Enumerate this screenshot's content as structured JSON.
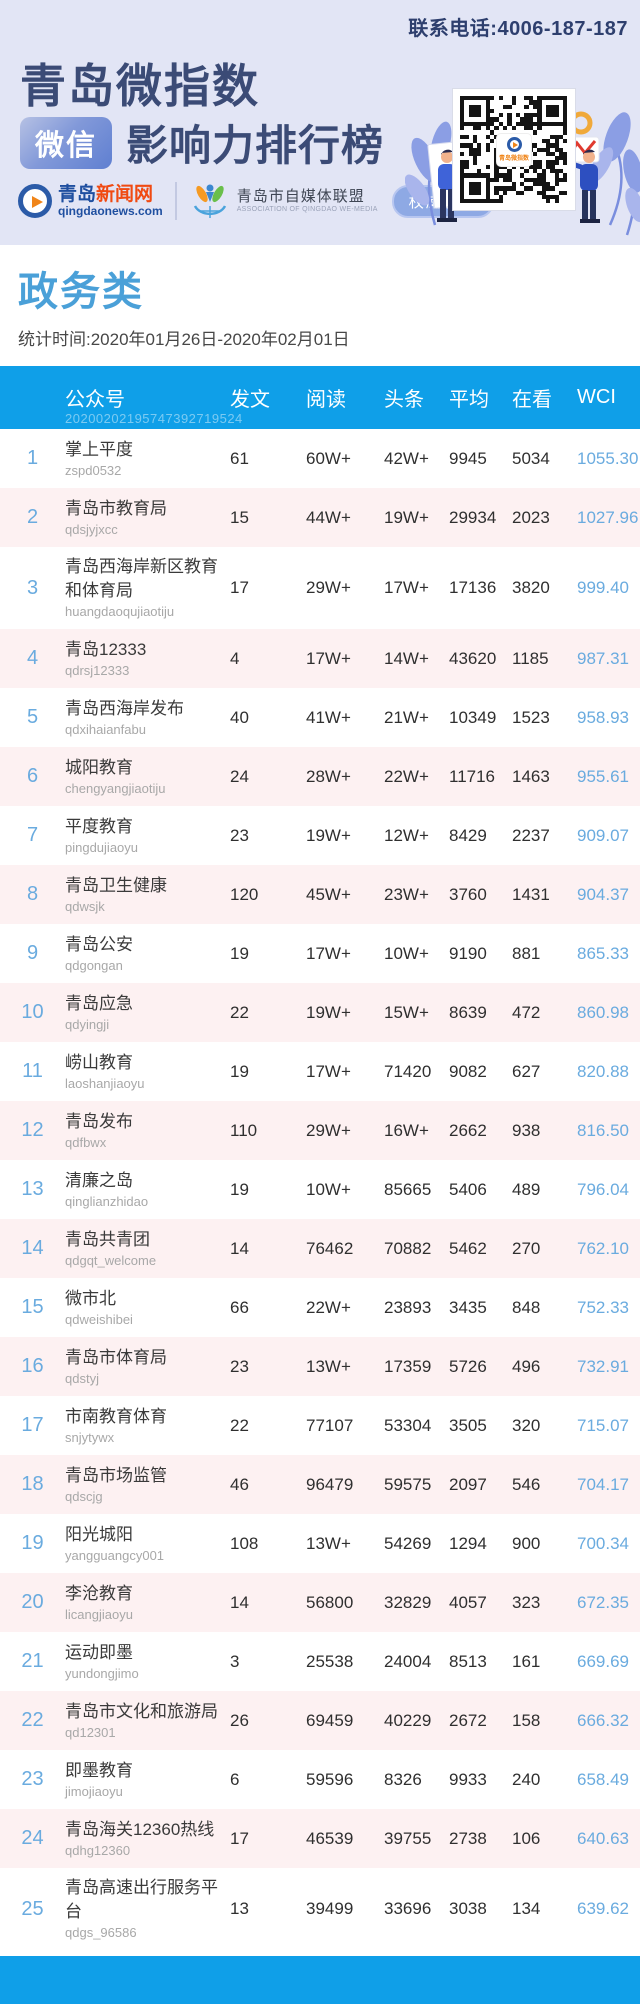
{
  "banner": {
    "phone": "联系电话:4006-187-187",
    "title_line1": "青岛微指数",
    "wechat_badge": "微信",
    "title_line2": "影响力排行榜",
    "news_logo": {
      "cn_blue": "青岛",
      "cn_orange": "新闻网",
      "domain": "qingdaonews.com"
    },
    "alliance_logo": {
      "name": "青岛市自媒体联盟",
      "sub": "ASSOCIATION OF QINGDAO WE-MEDIA"
    },
    "authority_badge": "权威发布",
    "qr_center_label": "青岛微指数"
  },
  "section": {
    "category": "政务类",
    "period": "统计时间:2020年01月26日-2020年02月01日"
  },
  "table": {
    "watermark": "20200202195747392719524",
    "columns": [
      "公众号",
      "发文",
      "阅读",
      "头条",
      "平均",
      "在看",
      "WCI"
    ],
    "rows": [
      {
        "rank": "1",
        "name": "掌上平度",
        "id": "zspd0532",
        "posts": "61",
        "reads": "60W+",
        "headline": "42W+",
        "average": "9945",
        "looking": "5034",
        "wci": "1055.30"
      },
      {
        "rank": "2",
        "name": "青岛市教育局",
        "id": "qdsjyjxcc",
        "posts": "15",
        "reads": "44W+",
        "headline": "19W+",
        "average": "29934",
        "looking": "2023",
        "wci": "1027.96"
      },
      {
        "rank": "3",
        "name": "青岛西海岸新区教育和体育局",
        "id": "huangdaoqujiaotiju",
        "posts": "17",
        "reads": "29W+",
        "headline": "17W+",
        "average": "17136",
        "looking": "3820",
        "wci": "999.40"
      },
      {
        "rank": "4",
        "name": "青岛12333",
        "id": "qdrsj12333",
        "posts": "4",
        "reads": "17W+",
        "headline": "14W+",
        "average": "43620",
        "looking": "1185",
        "wci": "987.31"
      },
      {
        "rank": "5",
        "name": "青岛西海岸发布",
        "id": "qdxihaianfabu",
        "posts": "40",
        "reads": "41W+",
        "headline": "21W+",
        "average": "10349",
        "looking": "1523",
        "wci": "958.93"
      },
      {
        "rank": "6",
        "name": "城阳教育",
        "id": "chengyangjiaotiju",
        "posts": "24",
        "reads": "28W+",
        "headline": "22W+",
        "average": "11716",
        "looking": "1463",
        "wci": "955.61"
      },
      {
        "rank": "7",
        "name": "平度教育",
        "id": "pingdujiaoyu",
        "posts": "23",
        "reads": "19W+",
        "headline": "12W+",
        "average": "8429",
        "looking": "2237",
        "wci": "909.07"
      },
      {
        "rank": "8",
        "name": "青岛卫生健康",
        "id": "qdwsjk",
        "posts": "120",
        "reads": "45W+",
        "headline": "23W+",
        "average": "3760",
        "looking": "1431",
        "wci": "904.37"
      },
      {
        "rank": "9",
        "name": "青岛公安",
        "id": "qdgongan",
        "posts": "19",
        "reads": "17W+",
        "headline": "10W+",
        "average": "9190",
        "looking": "881",
        "wci": "865.33"
      },
      {
        "rank": "10",
        "name": "青岛应急",
        "id": "qdyingji",
        "posts": "22",
        "reads": "19W+",
        "headline": "15W+",
        "average": "8639",
        "looking": "472",
        "wci": "860.98"
      },
      {
        "rank": "11",
        "name": "崂山教育",
        "id": "laoshanjiaoyu",
        "posts": "19",
        "reads": "17W+",
        "headline": "71420",
        "average": "9082",
        "looking": "627",
        "wci": "820.88"
      },
      {
        "rank": "12",
        "name": "青岛发布",
        "id": "qdfbwx",
        "posts": "110",
        "reads": "29W+",
        "headline": "16W+",
        "average": "2662",
        "looking": "938",
        "wci": "816.50"
      },
      {
        "rank": "13",
        "name": "清廉之岛",
        "id": "qinglianzhidao",
        "posts": "19",
        "reads": "10W+",
        "headline": "85665",
        "average": "5406",
        "looking": "489",
        "wci": "796.04"
      },
      {
        "rank": "14",
        "name": "青岛共青团",
        "id": "qdgqt_welcome",
        "posts": "14",
        "reads": "76462",
        "headline": "70882",
        "average": "5462",
        "looking": "270",
        "wci": "762.10"
      },
      {
        "rank": "15",
        "name": "微市北",
        "id": "qdweishibei",
        "posts": "66",
        "reads": "22W+",
        "headline": "23893",
        "average": "3435",
        "looking": "848",
        "wci": "752.33"
      },
      {
        "rank": "16",
        "name": "青岛市体育局",
        "id": "qdstyj",
        "posts": "23",
        "reads": "13W+",
        "headline": "17359",
        "average": "5726",
        "looking": "496",
        "wci": "732.91"
      },
      {
        "rank": "17",
        "name": "市南教育体育",
        "id": "snjytywx",
        "posts": "22",
        "reads": "77107",
        "headline": "53304",
        "average": "3505",
        "looking": "320",
        "wci": "715.07"
      },
      {
        "rank": "18",
        "name": "青岛市场监管",
        "id": "qdscjg",
        "posts": "46",
        "reads": "96479",
        "headline": "59575",
        "average": "2097",
        "looking": "546",
        "wci": "704.17"
      },
      {
        "rank": "19",
        "name": "阳光城阳",
        "id": "yangguangcy001",
        "posts": "108",
        "reads": "13W+",
        "headline": "54269",
        "average": "1294",
        "looking": "900",
        "wci": "700.34"
      },
      {
        "rank": "20",
        "name": "李沧教育",
        "id": "licangjiaoyu",
        "posts": "14",
        "reads": "56800",
        "headline": "32829",
        "average": "4057",
        "looking": "323",
        "wci": "672.35"
      },
      {
        "rank": "21",
        "name": "运动即墨",
        "id": "yundongjimo",
        "posts": "3",
        "reads": "25538",
        "headline": "24004",
        "average": "8513",
        "looking": "161",
        "wci": "669.69"
      },
      {
        "rank": "22",
        "name": "青岛市文化和旅游局",
        "id": "qd12301",
        "posts": "26",
        "reads": "69459",
        "headline": "40229",
        "average": "2672",
        "looking": "158",
        "wci": "666.32"
      },
      {
        "rank": "23",
        "name": "即墨教育",
        "id": "jimojiaoyu",
        "posts": "6",
        "reads": "59596",
        "headline": "8326",
        "average": "9933",
        "looking": "240",
        "wci": "658.49"
      },
      {
        "rank": "24",
        "name": "青岛海关12360热线",
        "id": "qdhg12360",
        "posts": "17",
        "reads": "46539",
        "headline": "39755",
        "average": "2738",
        "looking": "106",
        "wci": "640.63"
      },
      {
        "rank": "25",
        "name": "青岛高速出行服务平台",
        "id": "qdgs_96586",
        "posts": "13",
        "reads": "39499",
        "headline": "33696",
        "average": "3038",
        "looking": "134",
        "wci": "639.62"
      }
    ]
  },
  "colors": {
    "banner_bg": "#e2e5f5",
    "navy_text": "#3b4b76",
    "accent_blue": "#0f9fe8",
    "category_blue": "#4aa0d8",
    "rank_blue": "#6aabdf",
    "alt_row_pink": "#fdf1f2",
    "news_orange": "#f04a12",
    "news_blue": "#1f4fa0"
  }
}
